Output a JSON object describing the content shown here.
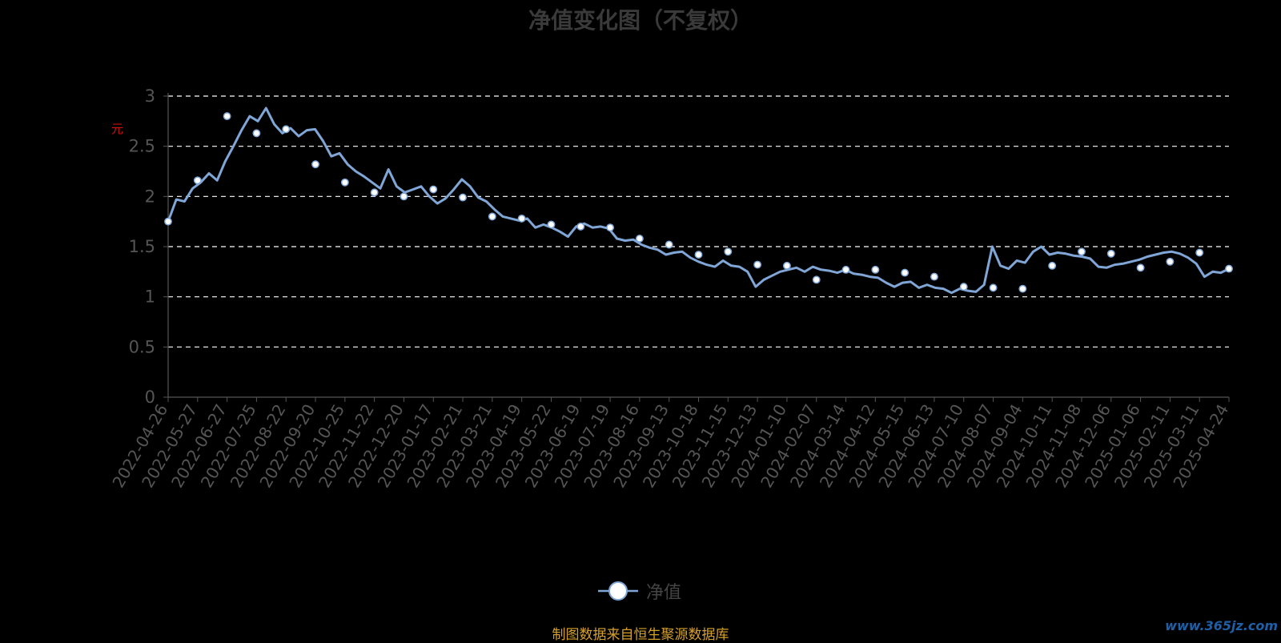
{
  "title": "净值变化图（不复权）",
  "footer": "制图数据来自恒生聚源数据库",
  "watermark": "www.365jz.com",
  "legend_label": "净值",
  "unit_label": "元",
  "colors": {
    "line": "#7fa6d6",
    "marker": "#ffffff",
    "grid": "#ffffff",
    "text": "#555555",
    "footer": "#d4a02a",
    "title": "#3a3a3a"
  },
  "chart_data": {
    "type": "line",
    "title": "净值变化图（不复权）",
    "ylim": [
      0,
      3
    ],
    "yticks": [
      "0",
      "0.5",
      "1",
      "1.5",
      "2",
      "2.5",
      "3"
    ],
    "grid": true,
    "legend_position": "bottom",
    "x_labels": [
      "2022-04-26",
      "2022-05-27",
      "2022-06-27",
      "2022-07-25",
      "2022-08-22",
      "2022-09-20",
      "2022-10-25",
      "2022-11-22",
      "2022-12-20",
      "2023-01-17",
      "2023-02-21",
      "2023-03-21",
      "2023-04-19",
      "2023-05-22",
      "2023-06-19",
      "2023-07-19",
      "2023-08-16",
      "2023-09-13",
      "2023-10-18",
      "2023-11-15",
      "2023-12-13",
      "2024-01-10",
      "2024-02-07",
      "2024-03-14",
      "2024-04-12",
      "2024-05-15",
      "2024-06-13",
      "2024-07-10",
      "2024-08-07",
      "2024-09-04",
      "2024-10-11",
      "2024-11-08",
      "2024-12-06",
      "2025-01-06",
      "2025-02-11",
      "2025-03-11",
      "2025-04-24"
    ],
    "series": [
      {
        "name": "净值",
        "values": [
          1.75,
          2.16,
          2.8,
          2.63,
          2.67,
          2.32,
          2.14,
          2.04,
          2.0,
          2.07,
          1.99,
          1.8,
          1.78,
          1.72,
          1.7,
          1.69,
          1.58,
          1.52,
          1.42,
          1.45,
          1.32,
          1.31,
          1.17,
          1.27,
          1.27,
          1.24,
          1.2,
          1.1,
          1.09,
          1.08,
          1.31,
          1.45,
          1.43,
          1.29,
          1.35,
          1.44,
          1.28
        ],
        "path_values": [
          1.75,
          1.97,
          1.95,
          2.08,
          2.14,
          2.23,
          2.16,
          2.35,
          2.5,
          2.66,
          2.8,
          2.75,
          2.88,
          2.72,
          2.63,
          2.68,
          2.6,
          2.66,
          2.67,
          2.55,
          2.4,
          2.43,
          2.32,
          2.25,
          2.2,
          2.14,
          2.08,
          2.27,
          2.1,
          2.04,
          2.07,
          2.1,
          2.0,
          1.93,
          1.98,
          2.07,
          2.17,
          2.1,
          1.99,
          1.95,
          1.87,
          1.8,
          1.78,
          1.76,
          1.78,
          1.69,
          1.72,
          1.69,
          1.65,
          1.6,
          1.7,
          1.73,
          1.69,
          1.7,
          1.68,
          1.58,
          1.56,
          1.57,
          1.52,
          1.49,
          1.47,
          1.42,
          1.44,
          1.45,
          1.39,
          1.35,
          1.32,
          1.3,
          1.36,
          1.31,
          1.3,
          1.25,
          1.1,
          1.17,
          1.21,
          1.25,
          1.27,
          1.29,
          1.25,
          1.3,
          1.27,
          1.26,
          1.24,
          1.27,
          1.23,
          1.22,
          1.2,
          1.19,
          1.14,
          1.1,
          1.14,
          1.15,
          1.09,
          1.12,
          1.09,
          1.08,
          1.04,
          1.08,
          1.06,
          1.05,
          1.12,
          1.5,
          1.31,
          1.28,
          1.36,
          1.34,
          1.45,
          1.5,
          1.42,
          1.44,
          1.43,
          1.41,
          1.4,
          1.38,
          1.3,
          1.29,
          1.32,
          1.33,
          1.35,
          1.37,
          1.4,
          1.42,
          1.44,
          1.45,
          1.43,
          1.39,
          1.33,
          1.2,
          1.25,
          1.24,
          1.28
        ]
      }
    ]
  }
}
